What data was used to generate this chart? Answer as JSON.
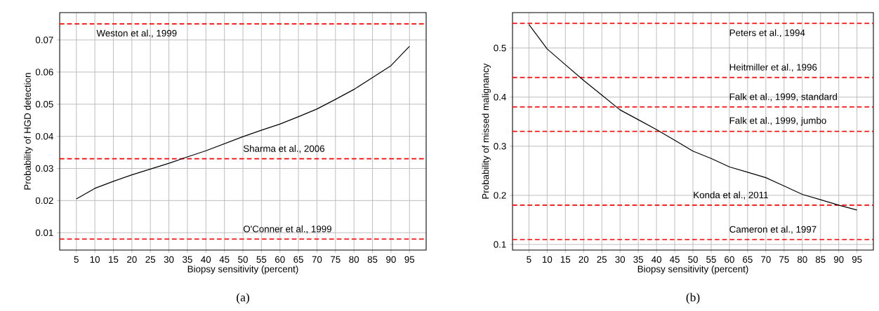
{
  "chart_data": [
    {
      "type": "line",
      "xlabel": "Biopsy sensitivity (percent)",
      "ylabel": "Probability of HGD detection",
      "x": [
        5,
        10,
        15,
        20,
        25,
        30,
        35,
        40,
        45,
        50,
        55,
        60,
        65,
        70,
        75,
        80,
        85,
        90,
        95
      ],
      "series": [
        {
          "color": "#000000",
          "values": [
            0.0205,
            0.0238,
            0.026,
            0.028,
            0.0298,
            0.0316,
            0.0336,
            0.0355,
            0.0377,
            0.0399,
            0.0419,
            0.0438,
            0.0461,
            0.0485,
            0.0515,
            0.0546,
            0.0583,
            0.062,
            0.068
          ]
        }
      ],
      "xlim": [
        0.5,
        99.5
      ],
      "ylim": [
        0.0046,
        0.0785
      ],
      "xticks": [
        5,
        10,
        15,
        20,
        25,
        30,
        35,
        40,
        45,
        50,
        55,
        60,
        65,
        70,
        75,
        80,
        85,
        90,
        95
      ],
      "yticks": [
        0.01,
        0.02,
        0.03,
        0.04,
        0.05,
        0.06,
        0.07
      ],
      "grid": true,
      "marker": "none",
      "line_style": "solid",
      "ref_lines": [
        {
          "axis": "y",
          "value": 0.075,
          "color": "#ff0000",
          "line_style": "dashed",
          "label": "Weston et al., 1999"
        },
        {
          "axis": "y",
          "value": 0.033,
          "color": "#ff0000",
          "line_style": "dashed",
          "label": "Sharma et al., 2006"
        },
        {
          "axis": "y",
          "value": 0.008,
          "color": "#ff0000",
          "line_style": "dashed",
          "label": "O'Conner et al., 1999"
        }
      ],
      "annotations": [
        "(a)"
      ]
    },
    {
      "type": "line",
      "xlabel": "Biopsy sensitivity (percent)",
      "ylabel": "Probability of missed malignancy",
      "x": [
        5,
        10,
        15,
        20,
        25,
        30,
        35,
        40,
        45,
        50,
        55,
        60,
        65,
        70,
        75,
        80,
        85,
        90,
        95
      ],
      "series": [
        {
          "color": "#000000",
          "values": [
            0.548,
            0.498,
            0.466,
            0.434,
            0.404,
            0.374,
            0.354,
            0.334,
            0.312,
            0.29,
            0.275,
            0.258,
            0.247,
            0.236,
            0.219,
            0.202,
            0.191,
            0.18,
            0.17
          ]
        }
      ],
      "xlim": [
        0.5,
        99.5
      ],
      "ylim": [
        0.0886,
        0.572
      ],
      "xticks": [
        5,
        10,
        15,
        20,
        25,
        30,
        35,
        40,
        45,
        50,
        55,
        60,
        65,
        70,
        75,
        80,
        85,
        90,
        95
      ],
      "yticks": [
        0.1,
        0.2,
        0.3,
        0.4,
        0.5
      ],
      "grid": true,
      "marker": "none",
      "line_style": "solid",
      "ref_lines": [
        {
          "axis": "y",
          "value": 0.55,
          "color": "#ff0000",
          "line_style": "dashed",
          "label": "Peters et al., 1994"
        },
        {
          "axis": "y",
          "value": 0.44,
          "color": "#ff0000",
          "line_style": "dashed",
          "label": "Heitmiller et al., 1996"
        },
        {
          "axis": "y",
          "value": 0.38,
          "color": "#ff0000",
          "line_style": "dashed",
          "label": "Falk et al., 1999, standard"
        },
        {
          "axis": "y",
          "value": 0.33,
          "color": "#ff0000",
          "line_style": "dashed",
          "label": "Falk et al., 1999, jumbo"
        },
        {
          "axis": "y",
          "value": 0.18,
          "color": "#ff0000",
          "line_style": "dashed",
          "label": "Konda et al., 2011"
        },
        {
          "axis": "y",
          "value": 0.11,
          "color": "#ff0000",
          "line_style": "dashed",
          "label": "Cameron et al., 1997"
        }
      ],
      "annotations": [
        "(b)"
      ]
    }
  ]
}
